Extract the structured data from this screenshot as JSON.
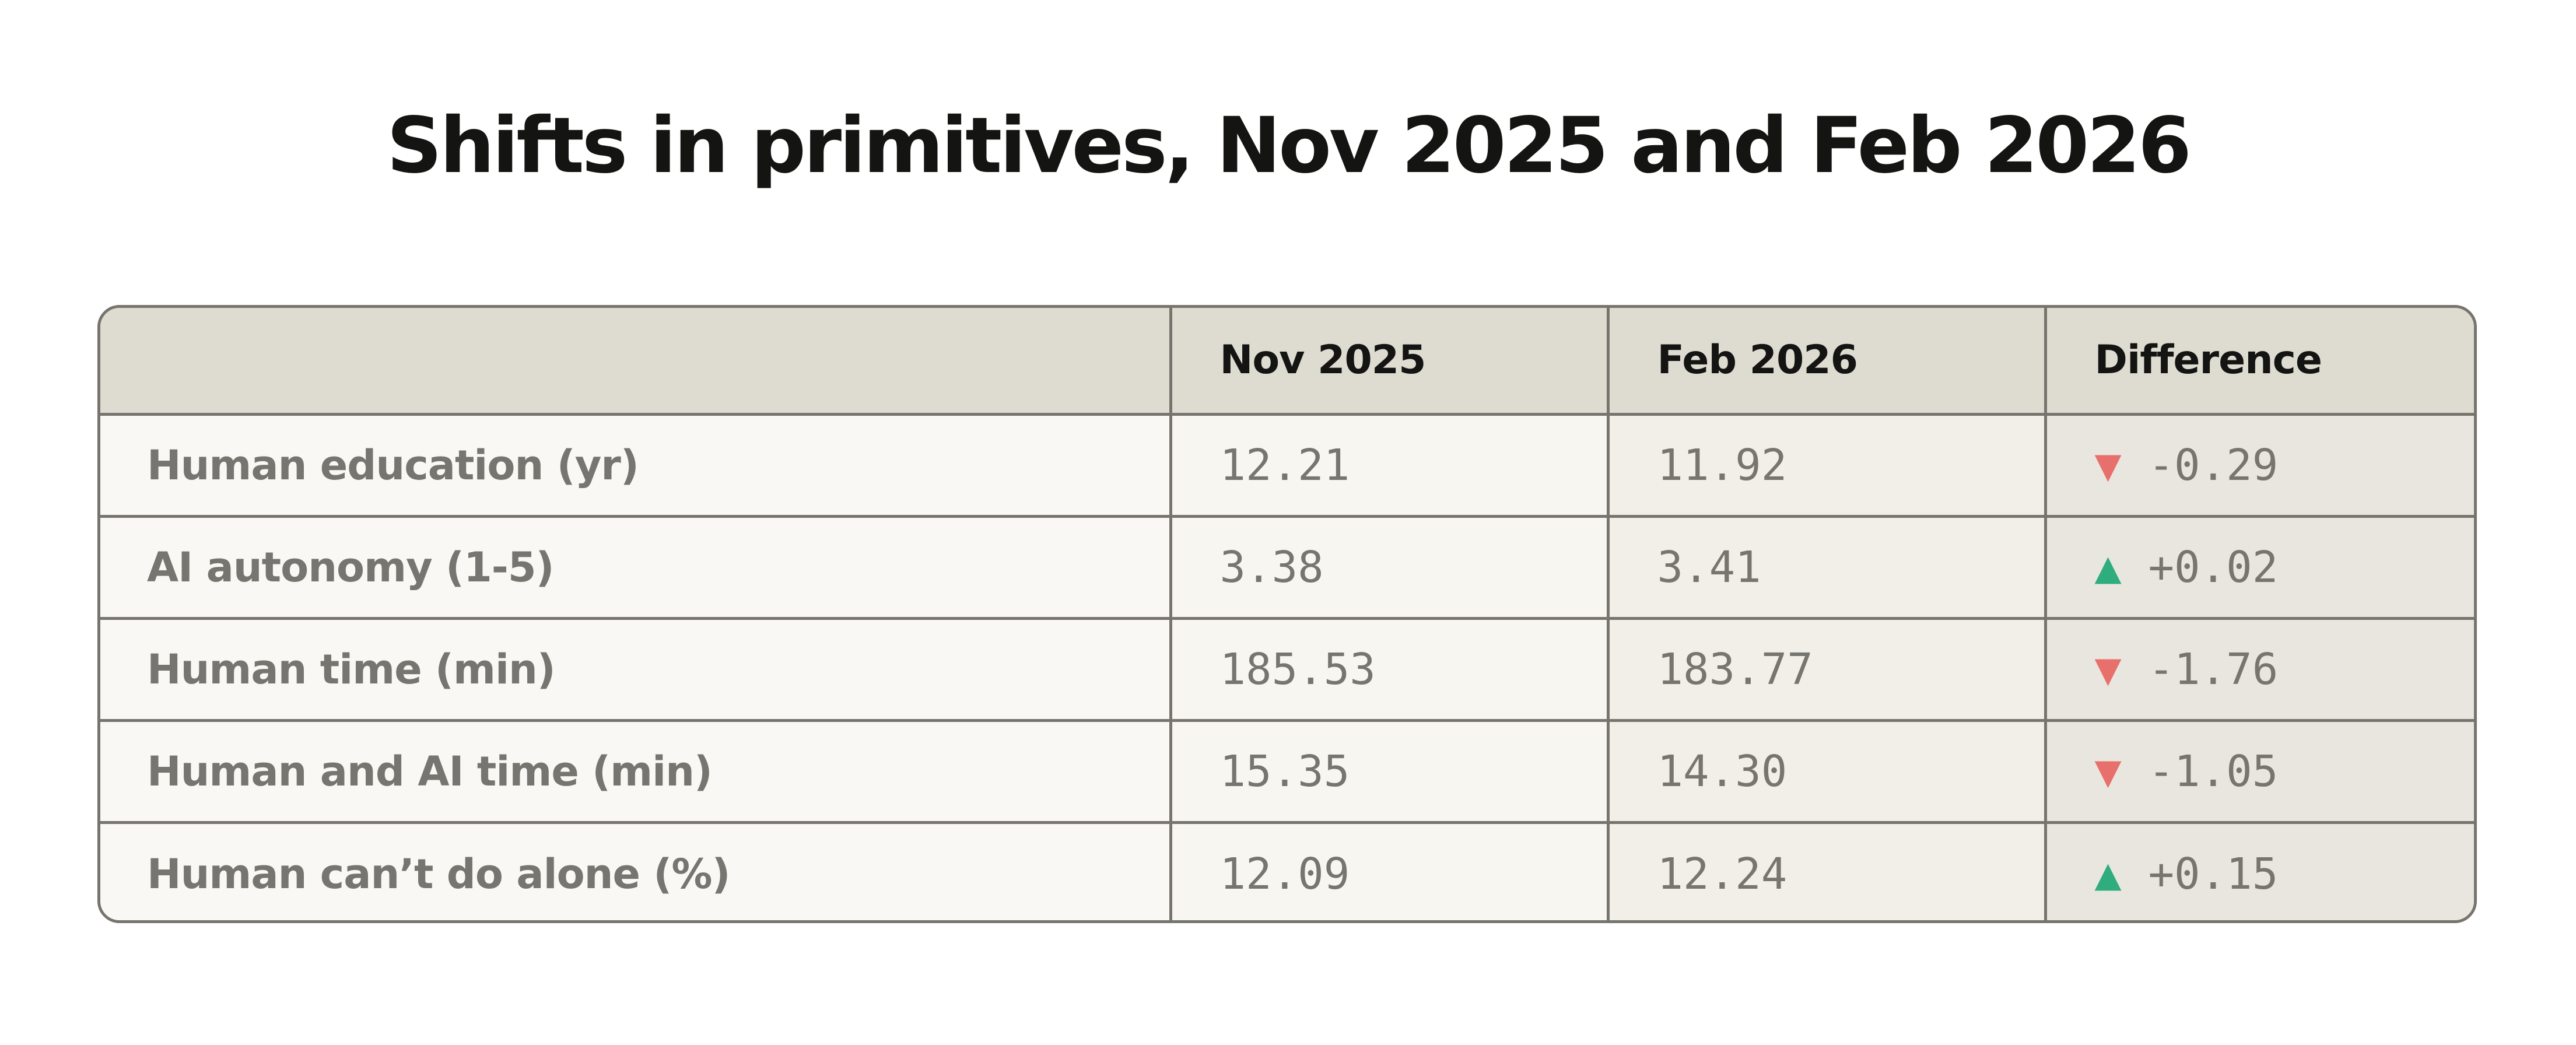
{
  "chart_data": {
    "type": "table",
    "title": "Shifts in primitives, Nov 2025 and Feb 2026",
    "columns": [
      "",
      "Nov 2025",
      "Feb 2026",
      "Difference"
    ],
    "rows": [
      {
        "label": "Human education (yr)",
        "nov": "12.21",
        "feb": "11.92",
        "diff": "-0.29",
        "dir": "down"
      },
      {
        "label": "AI autonomy (1-5)",
        "nov": "3.38",
        "feb": "3.41",
        "diff": "+0.02",
        "dir": "up"
      },
      {
        "label": "Human time (min)",
        "nov": "185.53",
        "feb": "183.77",
        "diff": "-1.76",
        "dir": "down"
      },
      {
        "label": "Human and AI time (min)",
        "nov": "15.35",
        "feb": "14.30",
        "diff": "-1.05",
        "dir": "down"
      },
      {
        "label": "Human can’t do alone (%)",
        "nov": "12.09",
        "feb": "12.24",
        "diff": "+0.15",
        "dir": "up"
      }
    ],
    "colors": {
      "header_bg": "#dedcd1",
      "border": "#76746d",
      "decrease": "#e8706c",
      "increase": "#2fad7e",
      "text_muted": "#77756f"
    },
    "icons": {
      "up": "triangle-up-icon",
      "down": "triangle-down-icon"
    }
  }
}
